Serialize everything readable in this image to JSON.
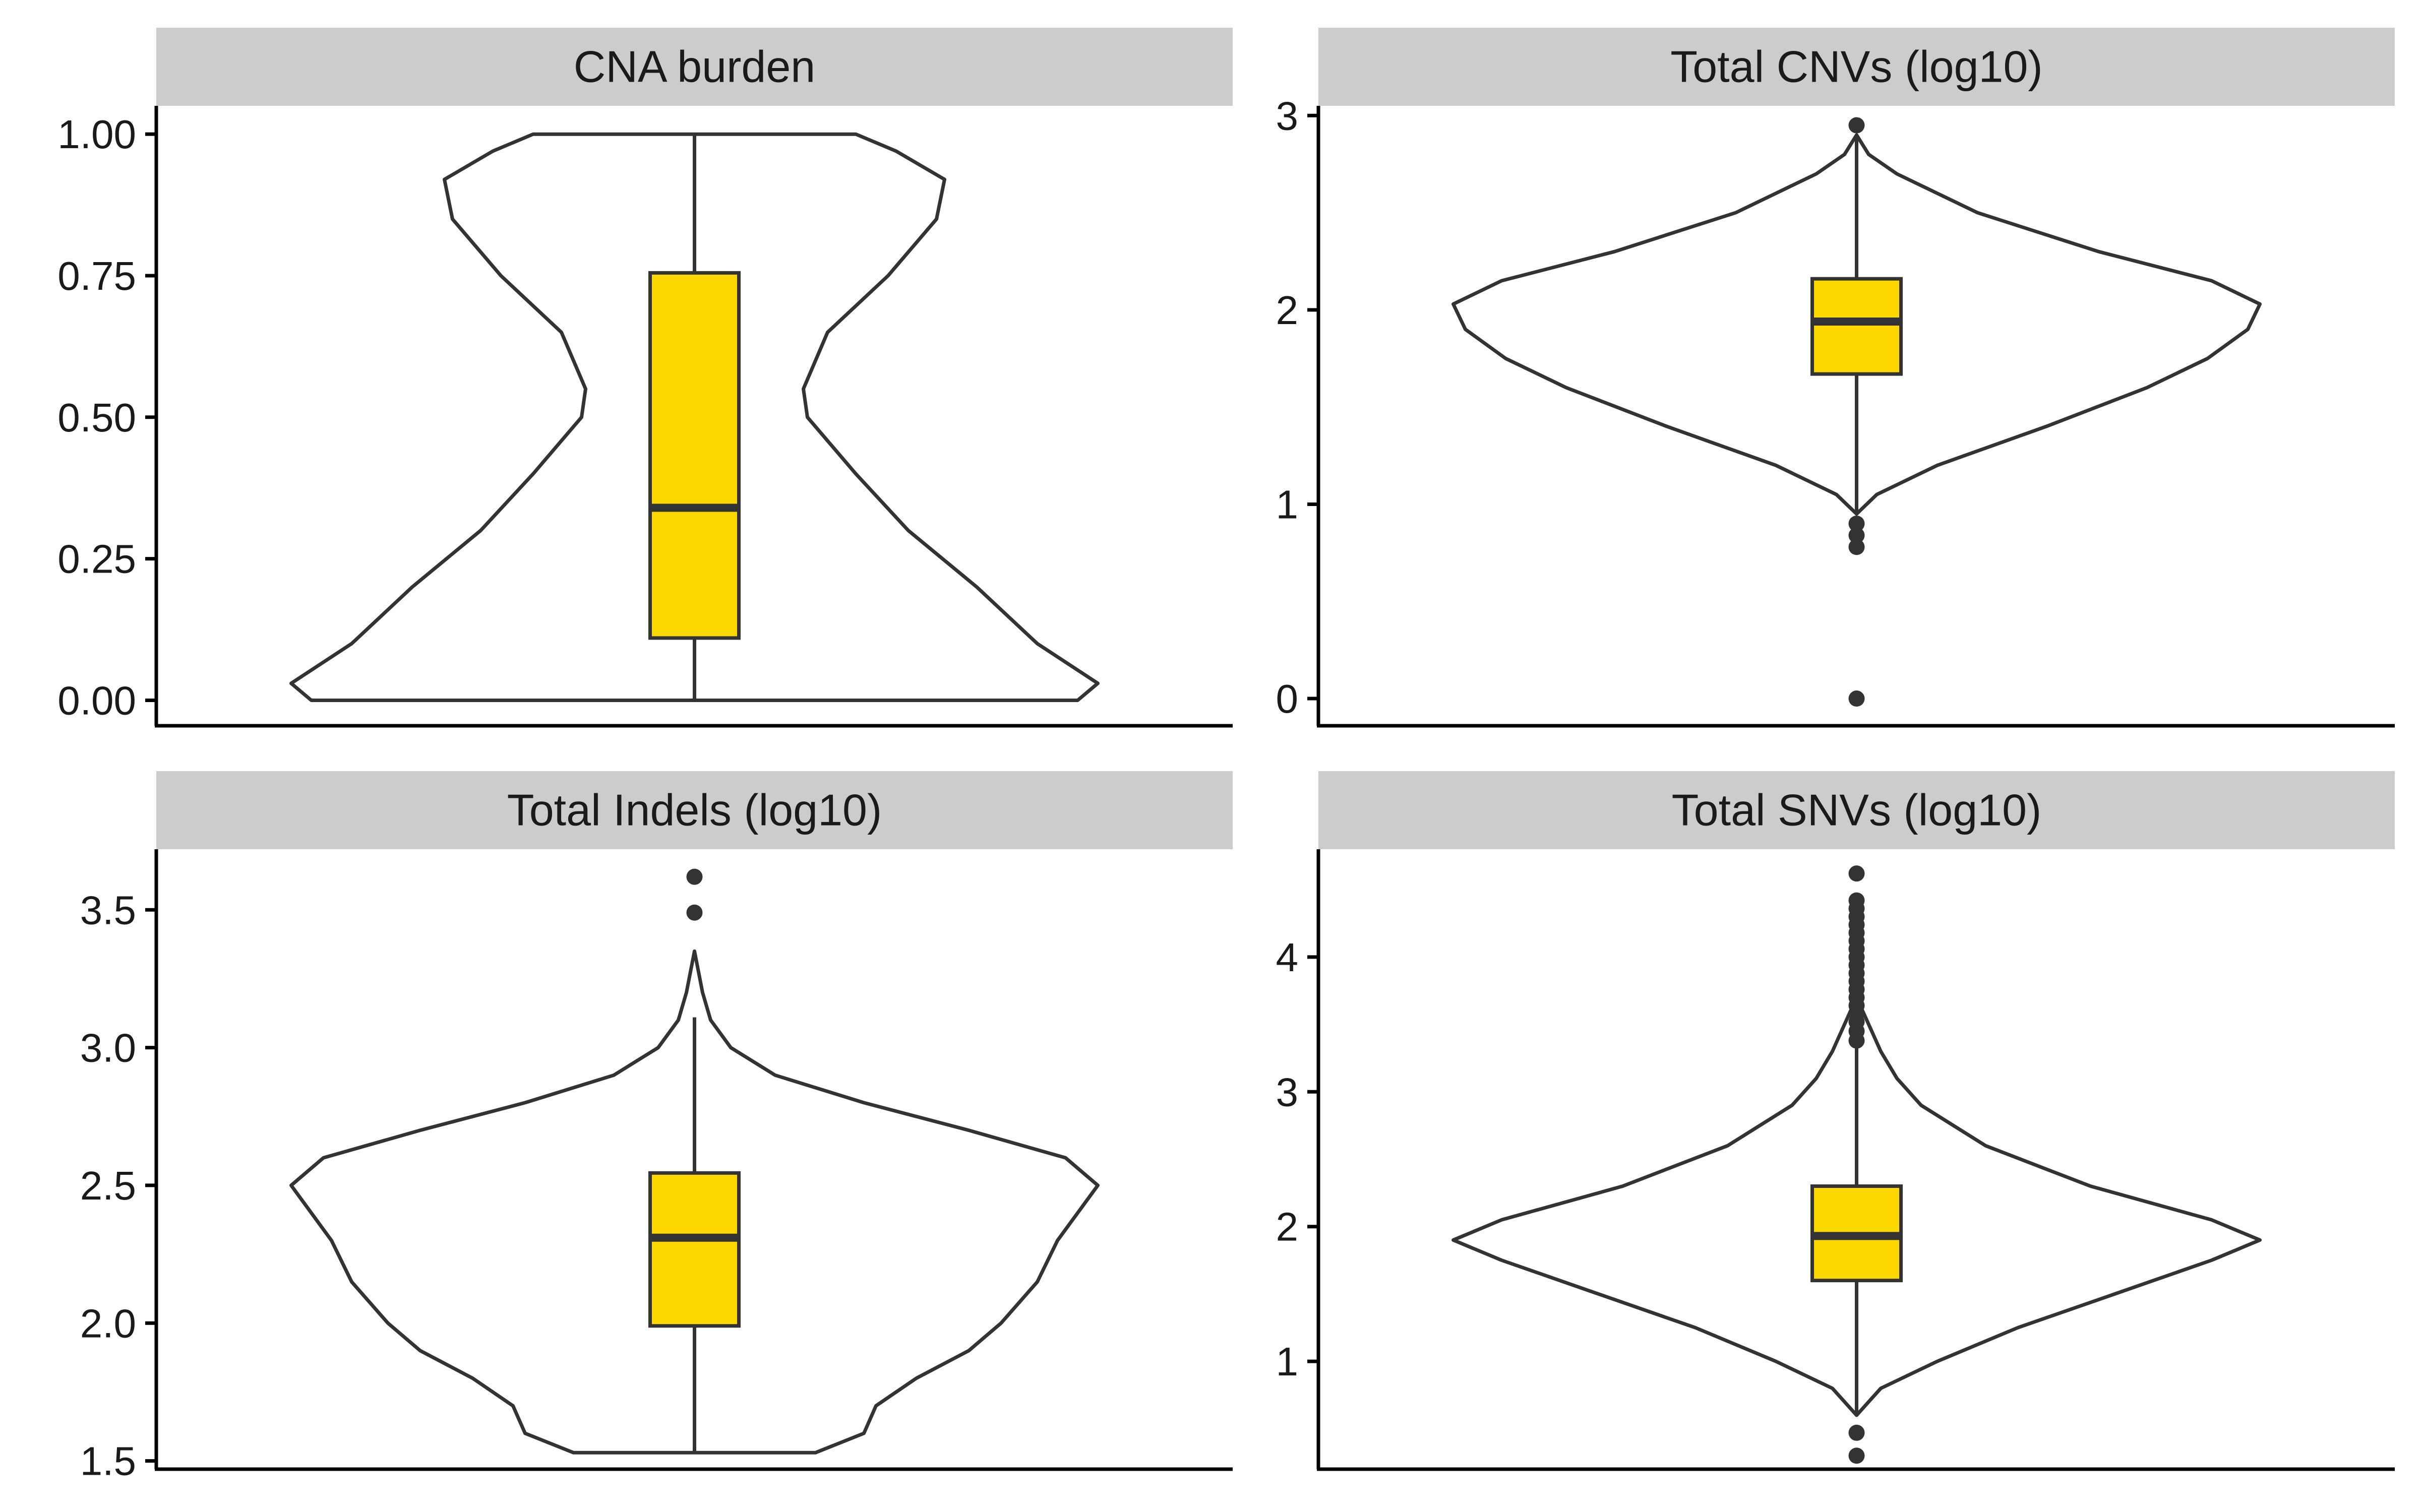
{
  "colors": {
    "box_fill": "#FFD700",
    "outline": "#333333",
    "strip_bg": "#CCCCCC",
    "axis": "#000000"
  },
  "chart_data": [
    {
      "type": "violin",
      "title": "CNA burden",
      "ylim": [
        -0.045,
        1.05
      ],
      "yticks": [
        0,
        0.25,
        0.5,
        0.75,
        1
      ],
      "ytick_labels": [
        "0.00",
        "0.25",
        "0.50",
        "0.75",
        "1.00"
      ],
      "box": {
        "q1": 0.11,
        "median": 0.34,
        "q3": 0.755,
        "whisker_low": 0.0,
        "whisker_high": 1.0
      },
      "outliers": [],
      "density": [
        [
          0.0,
          0.95
        ],
        [
          0.03,
          1.0
        ],
        [
          0.1,
          0.85
        ],
        [
          0.2,
          0.7
        ],
        [
          0.3,
          0.53
        ],
        [
          0.4,
          0.4
        ],
        [
          0.5,
          0.28
        ],
        [
          0.55,
          0.27
        ],
        [
          0.65,
          0.33
        ],
        [
          0.75,
          0.48
        ],
        [
          0.85,
          0.6
        ],
        [
          0.92,
          0.62
        ],
        [
          0.97,
          0.5
        ],
        [
          1.0,
          0.4
        ]
      ]
    },
    {
      "type": "violin",
      "title": "Total CNVs (log10)",
      "ylim": [
        -0.14,
        3.05
      ],
      "yticks": [
        0,
        1,
        2,
        3
      ],
      "ytick_labels": [
        "0",
        "1",
        "2",
        "3"
      ],
      "box": {
        "q1": 1.67,
        "median": 1.94,
        "q3": 2.16,
        "whisker_low": 0.95,
        "whisker_high": 2.9
      },
      "outliers": [
        0.0,
        0.78,
        0.84,
        0.9,
        2.95
      ],
      "density": [
        [
          0.95,
          0.0
        ],
        [
          1.05,
          0.05
        ],
        [
          1.2,
          0.2
        ],
        [
          1.4,
          0.47
        ],
        [
          1.6,
          0.72
        ],
        [
          1.75,
          0.87
        ],
        [
          1.9,
          0.97
        ],
        [
          2.03,
          1.0
        ],
        [
          2.15,
          0.88
        ],
        [
          2.3,
          0.6
        ],
        [
          2.5,
          0.3
        ],
        [
          2.7,
          0.1
        ],
        [
          2.8,
          0.03
        ],
        [
          2.9,
          0.0
        ]
      ]
    },
    {
      "type": "violin",
      "title": "Total Indels (log10)",
      "ylim": [
        1.47,
        3.72
      ],
      "yticks": [
        1.5,
        2.0,
        2.5,
        3.0,
        3.5
      ],
      "ytick_labels": [
        "1.5",
        "2.0",
        "2.5",
        "3.0",
        "3.5"
      ],
      "box": {
        "q1": 1.99,
        "median": 2.31,
        "q3": 2.545,
        "whisker_low": 1.53,
        "whisker_high": 3.11
      },
      "outliers": [
        3.49,
        3.62
      ],
      "density": [
        [
          1.53,
          0.3
        ],
        [
          1.6,
          0.42
        ],
        [
          1.7,
          0.45
        ],
        [
          1.8,
          0.55
        ],
        [
          1.9,
          0.68
        ],
        [
          2.0,
          0.76
        ],
        [
          2.15,
          0.85
        ],
        [
          2.3,
          0.9
        ],
        [
          2.5,
          1.0
        ],
        [
          2.6,
          0.92
        ],
        [
          2.7,
          0.68
        ],
        [
          2.8,
          0.42
        ],
        [
          2.9,
          0.2
        ],
        [
          3.0,
          0.09
        ],
        [
          3.1,
          0.04
        ],
        [
          3.2,
          0.02
        ],
        [
          3.35,
          0.0
        ]
      ]
    },
    {
      "type": "violin",
      "title": "Total SNVs (log10)",
      "ylim": [
        0.2,
        4.8
      ],
      "yticks": [
        1,
        2,
        3,
        4
      ],
      "ytick_labels": [
        "1",
        "2",
        "3",
        "4"
      ],
      "box": {
        "q1": 1.6,
        "median": 1.93,
        "q3": 2.3,
        "whisker_low": 0.6,
        "whisker_high": 3.35
      },
      "outliers": [
        0.3,
        0.47,
        3.38,
        3.45,
        3.52,
        3.58,
        3.64,
        3.7,
        3.76,
        3.82,
        3.88,
        3.94,
        4.0,
        4.06,
        4.12,
        4.18,
        4.24,
        4.3,
        4.36,
        4.42,
        4.62
      ],
      "density": [
        [
          0.6,
          0.0
        ],
        [
          0.8,
          0.06
        ],
        [
          1.0,
          0.2
        ],
        [
          1.25,
          0.4
        ],
        [
          1.5,
          0.64
        ],
        [
          1.75,
          0.88
        ],
        [
          1.9,
          1.0
        ],
        [
          2.05,
          0.88
        ],
        [
          2.3,
          0.58
        ],
        [
          2.6,
          0.32
        ],
        [
          2.9,
          0.16
        ],
        [
          3.1,
          0.1
        ],
        [
          3.3,
          0.06
        ],
        [
          3.5,
          0.03
        ],
        [
          3.7,
          0.0
        ]
      ]
    }
  ]
}
